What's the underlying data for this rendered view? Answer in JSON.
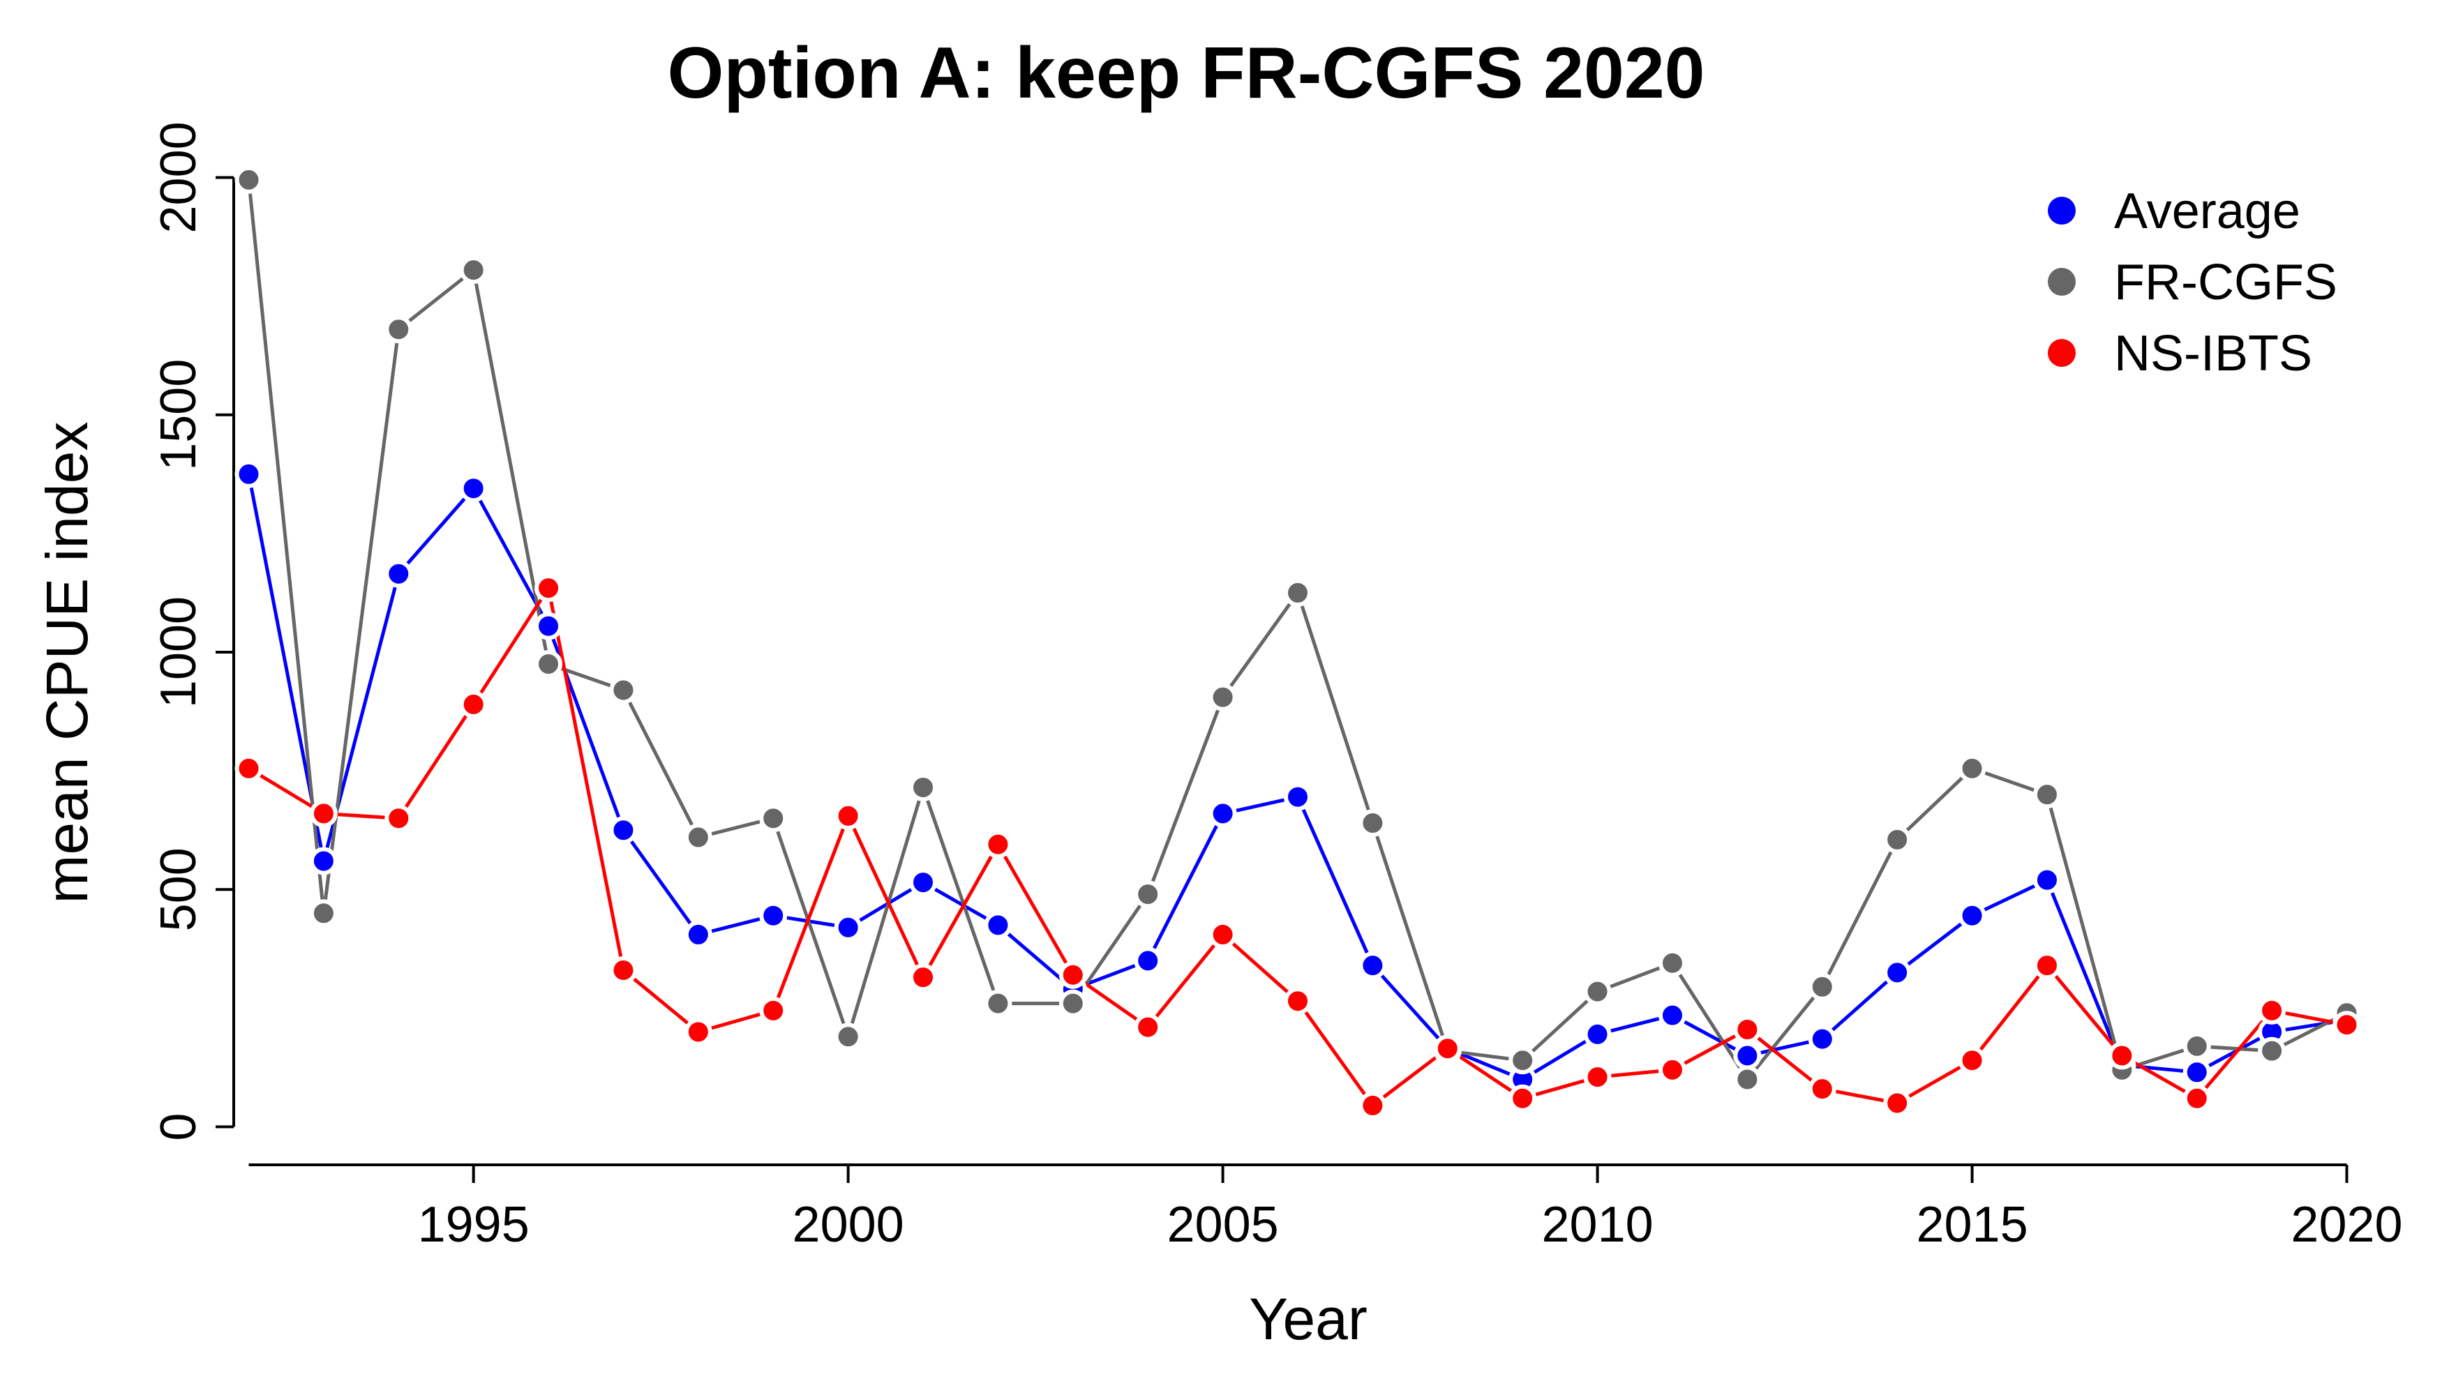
{
  "chart_data": {
    "type": "line",
    "title": "Option A: keep FR-CGFS 2020",
    "xlabel": "Year",
    "ylabel": "mean CPUE index",
    "xlim": [
      1991.8,
      2020.2
    ],
    "ylim": [
      -80,
      2080
    ],
    "x_ticks": [
      "1995",
      "2000",
      "2005",
      "2010",
      "2015",
      "2020"
    ],
    "y_ticks": [
      "0",
      "500",
      "1000",
      "1500",
      "2000"
    ],
    "grid": false,
    "legend_position": "top-right",
    "x": [
      1992,
      1993,
      1994,
      1995,
      1996,
      1997,
      1998,
      1999,
      2000,
      2001,
      2002,
      2003,
      2004,
      2005,
      2006,
      2007,
      2008,
      2009,
      2010,
      2011,
      2012,
      2013,
      2014,
      2015,
      2016,
      2017,
      2018,
      2019,
      2020
    ],
    "series": [
      {
        "name": "Average",
        "color": "#0000ff",
        "values": [
          1375,
          560,
          1165,
          1345,
          1055,
          625,
          405,
          445,
          420,
          515,
          425,
          290,
          350,
          660,
          695,
          340,
          165,
          100,
          195,
          235,
          150,
          185,
          325,
          445,
          520,
          130,
          115,
          200,
          225
        ]
      },
      {
        "name": "FR-CGFS",
        "color": "#666666",
        "values": [
          1995,
          450,
          1680,
          1805,
          975,
          920,
          610,
          650,
          190,
          715,
          260,
          260,
          490,
          905,
          1125,
          640,
          160,
          140,
          285,
          345,
          100,
          295,
          605,
          755,
          700,
          120,
          170,
          160,
          240
        ]
      },
      {
        "name": "NS-IBTS",
        "color": "#ff0000",
        "values": [
          755,
          660,
          650,
          890,
          1135,
          330,
          200,
          245,
          655,
          315,
          595,
          320,
          210,
          405,
          265,
          45,
          165,
          60,
          105,
          120,
          205,
          80,
          50,
          140,
          340,
          150,
          60,
          245,
          215
        ]
      }
    ]
  }
}
